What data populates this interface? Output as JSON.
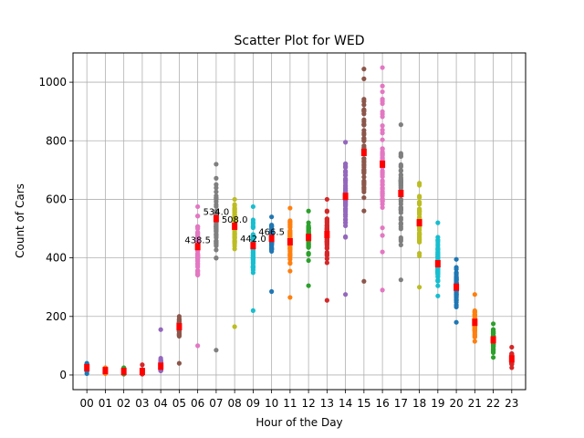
{
  "chart_data": {
    "type": "scatter",
    "title": "Scatter Plot for WED",
    "xlabel": "Hour of the Day",
    "ylabel": "Count of Cars",
    "categories": [
      "00",
      "01",
      "02",
      "03",
      "04",
      "05",
      "06",
      "07",
      "08",
      "09",
      "10",
      "11",
      "12",
      "13",
      "14",
      "15",
      "16",
      "17",
      "18",
      "19",
      "20",
      "21",
      "22",
      "23"
    ],
    "ylim": [
      -50,
      1100
    ],
    "yticks": [
      0,
      200,
      400,
      600,
      800,
      1000
    ],
    "grid": true,
    "palette": [
      "#1f77b4",
      "#ff7f0e",
      "#2ca02c",
      "#d62728",
      "#9467bd",
      "#8c564b",
      "#e377c2",
      "#7f7f7f",
      "#bcbd22",
      "#17becf"
    ],
    "mean_color": "#ff0000",
    "series": [
      {
        "hour": "00",
        "min": 5,
        "max": 40,
        "mean": 25
      },
      {
        "hour": "01",
        "min": 5,
        "max": 25,
        "mean": 15
      },
      {
        "hour": "02",
        "min": 3,
        "max": 25,
        "mean": 12
      },
      {
        "hour": "03",
        "min": 3,
        "max": 35,
        "mean": 12
      },
      {
        "hour": "04",
        "min": 15,
        "max": 155,
        "mean": 30
      },
      {
        "hour": "05",
        "min": 40,
        "max": 200,
        "mean": 165
      },
      {
        "hour": "06",
        "min": 100,
        "max": 575,
        "mean": 438.5
      },
      {
        "hour": "07",
        "min": 85,
        "max": 720,
        "mean": 534.0
      },
      {
        "hour": "08",
        "min": 165,
        "max": 600,
        "mean": 508.0
      },
      {
        "hour": "09",
        "min": 220,
        "max": 575,
        "mean": 442.0
      },
      {
        "hour": "10",
        "min": 285,
        "max": 540,
        "mean": 466.5
      },
      {
        "hour": "11",
        "min": 265,
        "max": 570,
        "mean": 455
      },
      {
        "hour": "12",
        "min": 305,
        "max": 560,
        "mean": 470
      },
      {
        "hour": "13",
        "min": 255,
        "max": 600,
        "mean": 480
      },
      {
        "hour": "14",
        "min": 275,
        "max": 795,
        "mean": 610
      },
      {
        "hour": "15",
        "min": 320,
        "max": 1045,
        "mean": 760
      },
      {
        "hour": "16",
        "min": 290,
        "max": 1050,
        "mean": 720
      },
      {
        "hour": "17",
        "min": 325,
        "max": 855,
        "mean": 620
      },
      {
        "hour": "18",
        "min": 300,
        "max": 655,
        "mean": 520
      },
      {
        "hour": "19",
        "min": 270,
        "max": 520,
        "mean": 380
      },
      {
        "hour": "20",
        "min": 180,
        "max": 395,
        "mean": 300
      },
      {
        "hour": "21",
        "min": 115,
        "max": 275,
        "mean": 180
      },
      {
        "hour": "22",
        "min": 60,
        "max": 175,
        "mean": 120
      },
      {
        "hour": "23",
        "min": 25,
        "max": 95,
        "mean": 55
      }
    ],
    "annotations": [
      {
        "hour": "06",
        "text": "438.5",
        "value": 438.5
      },
      {
        "hour": "07",
        "text": "534.0",
        "value": 534.0
      },
      {
        "hour": "08",
        "text": "508.0",
        "value": 508.0
      },
      {
        "hour": "09",
        "text": "442.0",
        "value": 442.0
      },
      {
        "hour": "10",
        "text": "466.5",
        "value": 466.5
      }
    ]
  }
}
